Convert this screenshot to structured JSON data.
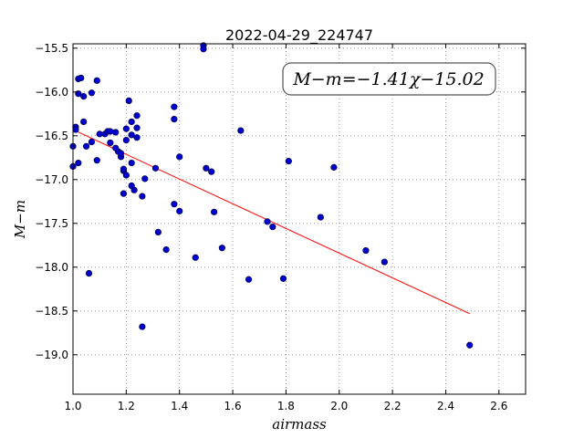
{
  "chart_data": {
    "type": "scatter",
    "title": "2022-04-29_224747",
    "xlabel": "airmass",
    "ylabel": "M−m",
    "xlim": [
      1.0,
      2.7
    ],
    "ylim": [
      -19.45,
      -15.45
    ],
    "y_inverted": true,
    "xticks": [
      1.0,
      1.2,
      1.4,
      1.6,
      1.8,
      2.0,
      2.2,
      2.4,
      2.6
    ],
    "yticks": [
      -15.5,
      -16.0,
      -16.5,
      -17.0,
      -17.5,
      -18.0,
      -18.5,
      -19.0
    ],
    "grid": true,
    "annotation": "M−m=−1.41χ−15.02",
    "colors": {
      "points": "#0000cc",
      "fit": "#ff0000",
      "grid": "#888888"
    },
    "fit_line": {
      "slope": -1.41,
      "intercept": -15.02,
      "x_range": [
        1.0,
        2.49
      ]
    },
    "points": [
      {
        "x": 1.0,
        "y": -16.62
      },
      {
        "x": 1.0,
        "y": -16.85
      },
      {
        "x": 1.01,
        "y": -16.4
      },
      {
        "x": 1.01,
        "y": -16.43
      },
      {
        "x": 1.02,
        "y": -16.02
      },
      {
        "x": 1.02,
        "y": -15.85
      },
      {
        "x": 1.02,
        "y": -16.81
      },
      {
        "x": 1.03,
        "y": -15.84
      },
      {
        "x": 1.04,
        "y": -16.05
      },
      {
        "x": 1.04,
        "y": -16.34
      },
      {
        "x": 1.05,
        "y": -16.62
      },
      {
        "x": 1.06,
        "y": -18.07
      },
      {
        "x": 1.07,
        "y": -16.57
      },
      {
        "x": 1.07,
        "y": -16.01
      },
      {
        "x": 1.09,
        "y": -15.87
      },
      {
        "x": 1.09,
        "y": -16.78
      },
      {
        "x": 1.1,
        "y": -16.48
      },
      {
        "x": 1.12,
        "y": -16.48
      },
      {
        "x": 1.13,
        "y": -16.45
      },
      {
        "x": 1.14,
        "y": -16.58
      },
      {
        "x": 1.14,
        "y": -16.45
      },
      {
        "x": 1.16,
        "y": -16.46
      },
      {
        "x": 1.16,
        "y": -16.64
      },
      {
        "x": 1.17,
        "y": -16.68
      },
      {
        "x": 1.18,
        "y": -16.74
      },
      {
        "x": 1.18,
        "y": -16.7
      },
      {
        "x": 1.19,
        "y": -16.9
      },
      {
        "x": 1.19,
        "y": -16.88
      },
      {
        "x": 1.19,
        "y": -17.16
      },
      {
        "x": 1.2,
        "y": -16.95
      },
      {
        "x": 1.2,
        "y": -16.42
      },
      {
        "x": 1.2,
        "y": -16.55
      },
      {
        "x": 1.21,
        "y": -16.1
      },
      {
        "x": 1.22,
        "y": -16.34
      },
      {
        "x": 1.22,
        "y": -16.49
      },
      {
        "x": 1.22,
        "y": -16.81
      },
      {
        "x": 1.22,
        "y": -17.07
      },
      {
        "x": 1.23,
        "y": -17.12
      },
      {
        "x": 1.24,
        "y": -16.27
      },
      {
        "x": 1.24,
        "y": -16.41
      },
      {
        "x": 1.24,
        "y": -16.52
      },
      {
        "x": 1.26,
        "y": -17.19
      },
      {
        "x": 1.27,
        "y": -16.99
      },
      {
        "x": 1.26,
        "y": -18.68
      },
      {
        "x": 1.31,
        "y": -16.87
      },
      {
        "x": 1.32,
        "y": -17.6
      },
      {
        "x": 1.35,
        "y": -17.8
      },
      {
        "x": 1.38,
        "y": -16.17
      },
      {
        "x": 1.38,
        "y": -16.31
      },
      {
        "x": 1.38,
        "y": -17.28
      },
      {
        "x": 1.4,
        "y": -17.36
      },
      {
        "x": 1.4,
        "y": -16.74
      },
      {
        "x": 1.46,
        "y": -17.89
      },
      {
        "x": 1.49,
        "y": -15.47
      },
      {
        "x": 1.49,
        "y": -15.51
      },
      {
        "x": 1.5,
        "y": -16.87
      },
      {
        "x": 1.52,
        "y": -16.91
      },
      {
        "x": 1.53,
        "y": -17.37
      },
      {
        "x": 1.56,
        "y": -17.78
      },
      {
        "x": 1.63,
        "y": -16.44
      },
      {
        "x": 1.66,
        "y": -18.14
      },
      {
        "x": 1.73,
        "y": -17.48
      },
      {
        "x": 1.75,
        "y": -17.54
      },
      {
        "x": 1.79,
        "y": -18.13
      },
      {
        "x": 1.81,
        "y": -16.79
      },
      {
        "x": 1.93,
        "y": -17.43
      },
      {
        "x": 1.98,
        "y": -16.86
      },
      {
        "x": 2.1,
        "y": -17.81
      },
      {
        "x": 2.17,
        "y": -17.94
      },
      {
        "x": 2.49,
        "y": -18.89
      }
    ]
  }
}
